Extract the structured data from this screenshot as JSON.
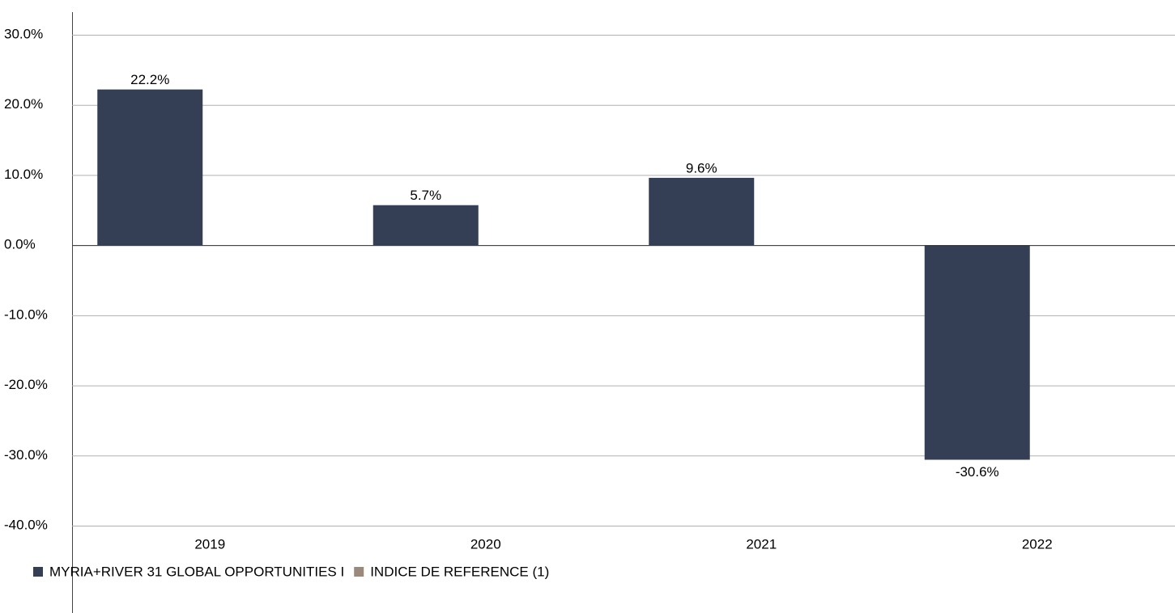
{
  "chart_data": {
    "type": "bar",
    "categories": [
      "2019",
      "2020",
      "2021",
      "2022"
    ],
    "series": [
      {
        "name": "MYRIA+RIVER 31 GLOBAL OPPORTUNITIES I",
        "color": "#343e55",
        "values": [
          22.2,
          5.7,
          9.6,
          -30.6
        ],
        "value_labels": [
          "22.2%",
          "5.7%",
          "9.6%",
          "-30.6%"
        ]
      },
      {
        "name": "INDICE DE REFERENCE (1)",
        "color": "#9b8a7c",
        "values": [
          null,
          null,
          null,
          null
        ]
      }
    ],
    "ylim": [
      -40,
      30
    ],
    "yticks": [
      {
        "value": -40,
        "label": "-40.0%"
      },
      {
        "value": -30,
        "label": "-30.0%"
      },
      {
        "value": -20,
        "label": "-20.0%"
      },
      {
        "value": -10,
        "label": "-10.0%"
      },
      {
        "value": 0,
        "label": "0.0%"
      },
      {
        "value": 10,
        "label": "10.0%"
      },
      {
        "value": 20,
        "label": "20.0%"
      },
      {
        "value": 30,
        "label": "30.0%"
      }
    ],
    "grid": true
  }
}
